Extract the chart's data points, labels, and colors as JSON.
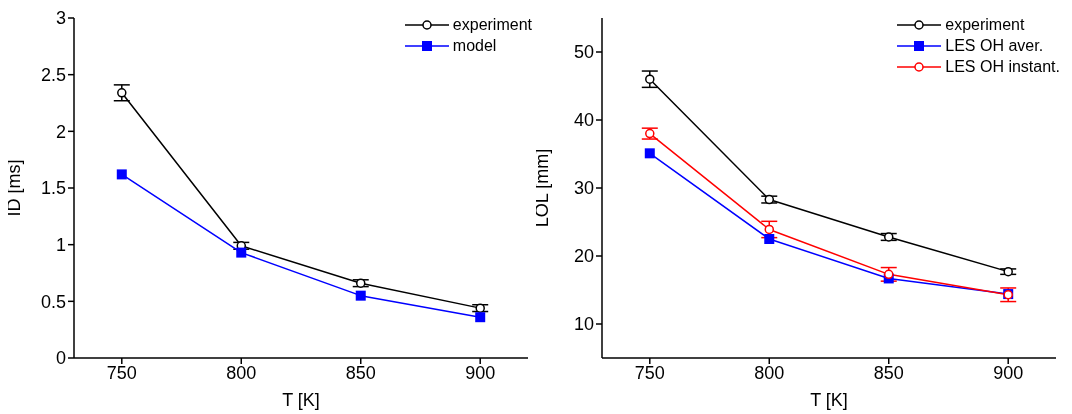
{
  "chart_data": [
    {
      "type": "line",
      "xlabel": "T [K]",
      "ylabel": "ID [ms]",
      "x": [
        750,
        800,
        850,
        900
      ],
      "xlim": [
        730,
        920
      ],
      "xticks": [
        750,
        800,
        850,
        900
      ],
      "ylim": [
        0,
        3
      ],
      "yticks": [
        0,
        0.5,
        1,
        1.5,
        2,
        2.5,
        3
      ],
      "grid": false,
      "legend": "top right",
      "series": [
        {
          "name": "experiment",
          "color": "#000000",
          "marker": "circle",
          "values": [
            2.34,
            0.99,
            0.66,
            0.44
          ],
          "errors": [
            0.07,
            0.03,
            0.03,
            0.03
          ]
        },
        {
          "name": "model",
          "color": "#0000ff",
          "marker": "square",
          "values": [
            1.62,
            0.93,
            0.55,
            0.36
          ]
        }
      ]
    },
    {
      "type": "line",
      "xlabel": "T [K]",
      "ylabel": "LOL [mm]",
      "x": [
        750,
        800,
        850,
        900
      ],
      "xlim": [
        730,
        920
      ],
      "xticks": [
        750,
        800,
        850,
        900
      ],
      "ylim": [
        5,
        55
      ],
      "yticks": [
        10,
        20,
        30,
        40,
        50
      ],
      "grid": false,
      "legend": "top right",
      "series": [
        {
          "name": "experiment",
          "color": "#000000",
          "marker": "circle",
          "values": [
            46,
            28.3,
            22.8,
            17.7
          ],
          "errors": [
            1.2,
            0.5,
            0.5,
            0.4
          ]
        },
        {
          "name": "LES OH aver.",
          "color": "#0000ff",
          "marker": "square",
          "values": [
            35.1,
            22.5,
            16.7,
            14.4
          ]
        },
        {
          "name": "LES OH instant.",
          "color": "#ff0000",
          "marker": "circle",
          "values": [
            38,
            23.9,
            17.3,
            14.3
          ],
          "errors": [
            0.8,
            1.2,
            1,
            1
          ]
        }
      ]
    }
  ]
}
